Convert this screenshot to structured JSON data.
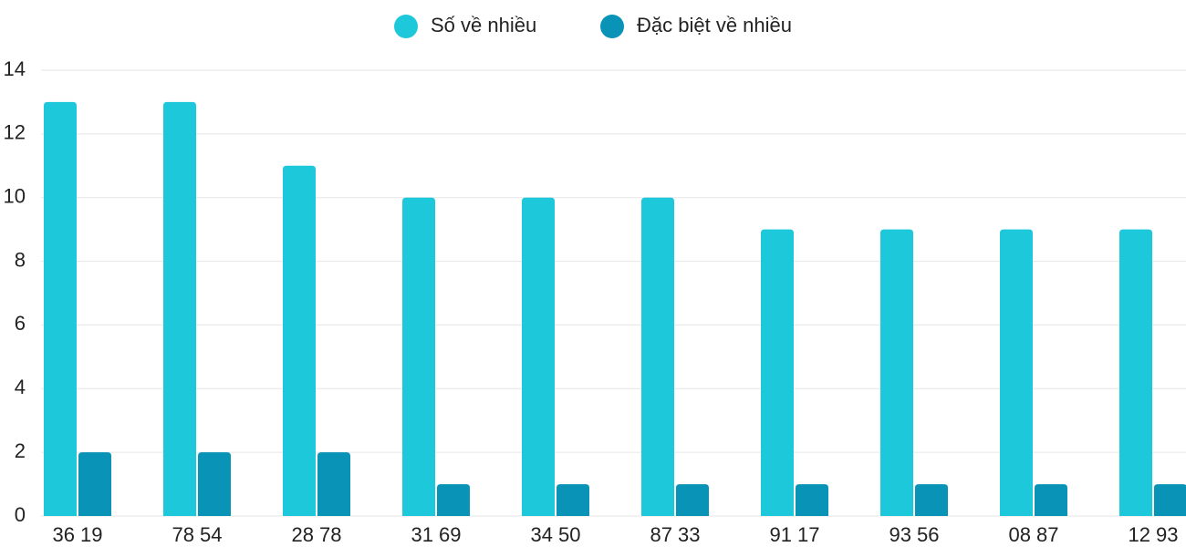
{
  "chart_data": {
    "type": "bar",
    "categories": [
      "36 19",
      "78 54",
      "28 78",
      "31 69",
      "34 50",
      "87 33",
      "91 17",
      "93 56",
      "08 87",
      "12 93"
    ],
    "series": [
      {
        "name": "Số về nhiều",
        "color": "#1dc8db",
        "values": [
          13,
          13,
          11,
          10,
          10,
          10,
          9,
          9,
          9,
          9
        ]
      },
      {
        "name": "Đặc biệt về nhiều",
        "color": "#0993b7",
        "values": [
          2,
          2,
          2,
          1,
          1,
          1,
          1,
          1,
          1,
          1
        ]
      }
    ],
    "ylim": [
      0,
      14
    ],
    "yticks": [
      0,
      2,
      4,
      6,
      8,
      10,
      12,
      14
    ],
    "grid": true,
    "legend": "top"
  }
}
